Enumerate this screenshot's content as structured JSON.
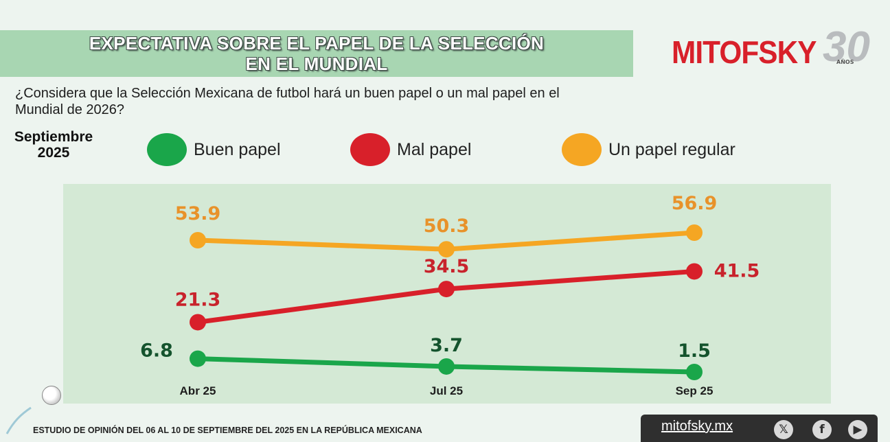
{
  "header": {
    "title_line1": "EXPECTATIVA SOBRE EL PAPEL DE LA SELECCIÓN",
    "title_line2": "EN EL MUNDIAL"
  },
  "logo": {
    "brand": "MITOFSKY",
    "anniversary": "30",
    "anos": "AÑOS"
  },
  "question": "¿Considera que la Selección Mexicana de futbol hará un buen papel o un mal papel en el Mundial de 2026?",
  "period": {
    "line1": "Septiembre",
    "line2": "2025"
  },
  "chart_data": {
    "type": "line",
    "categories": [
      "Abr 25",
      "Jul 25",
      "Sep 25"
    ],
    "series": [
      {
        "name": "Un papel regular",
        "values": [
          53.9,
          50.3,
          56.9
        ],
        "color": "#f5a623",
        "label_color": "#e8922a"
      },
      {
        "name": "Mal papel",
        "values": [
          21.3,
          34.5,
          41.5
        ],
        "color": "#d8202a",
        "label_color": "#c8232c"
      },
      {
        "name": "Buen papel",
        "values": [
          6.8,
          3.7,
          1.5
        ],
        "color": "#1aa64a",
        "label_color": "#14532d"
      }
    ],
    "legend": [
      "Buen papel",
      "Mal papel",
      "Un papel regular"
    ],
    "legend_colors": [
      "#1aa64a",
      "#d8202a",
      "#f5a623"
    ]
  },
  "footer": {
    "text": "ESTUDIO DE OPINIÓN DEL 06 AL 10 DE SEPTIEMBRE DEL 2025 EN LA REPÚBLICA MEXICANA",
    "url": "mitofsky.mx"
  }
}
